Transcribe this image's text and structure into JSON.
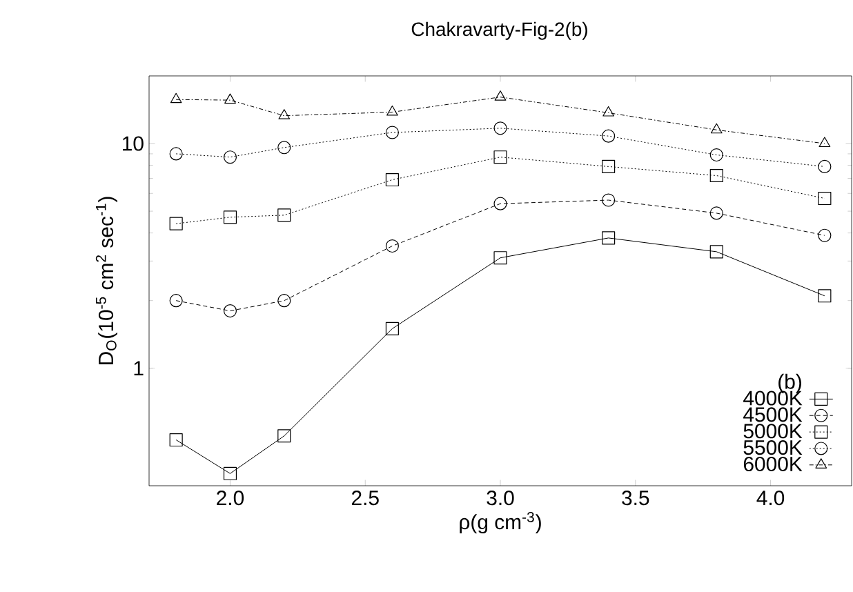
{
  "chart_data": {
    "type": "line",
    "title": "Chakravarty-Fig-2(b)",
    "xlabel": "ρ(g cm$^{-3}$)",
    "ylabel": "D$_{O}$(10$^{-5}$ cm$^{2}$ sec$^{-1}$)",
    "x": [
      1.8,
      2.0,
      2.2,
      2.6,
      3.0,
      3.4,
      3.8,
      4.2
    ],
    "series": [
      {
        "name": "4000K",
        "color": "#000000",
        "marker": "square",
        "line_style": "solid",
        "values": [
          0.48,
          0.34,
          0.5,
          1.5,
          3.1,
          3.8,
          3.3,
          2.1
        ]
      },
      {
        "name": "4500K",
        "color": "#000000",
        "marker": "circle",
        "line_style": "dashed",
        "values": [
          2.0,
          1.8,
          2.0,
          3.5,
          5.4,
          5.6,
          4.9,
          3.9
        ]
      },
      {
        "name": "5000K",
        "color": "#000000",
        "marker": "square",
        "line_style": "dotted",
        "values": [
          4.4,
          4.7,
          4.8,
          6.9,
          8.7,
          7.9,
          7.2,
          5.7
        ]
      },
      {
        "name": "5500K",
        "color": "#000000",
        "marker": "circle",
        "line_style": "dotted",
        "values": [
          9.0,
          8.7,
          9.6,
          11.2,
          11.7,
          10.8,
          8.9,
          7.9
        ]
      },
      {
        "name": "6000K",
        "color": "#000000",
        "marker": "triangle",
        "line_style": "dashdot",
        "values": [
          15.7,
          15.6,
          13.3,
          13.8,
          16.1,
          13.7,
          11.5,
          10.0
        ]
      }
    ],
    "legend_title": "(b)",
    "legend": "bottom right",
    "log": "y",
    "xlim": [
      1.7,
      4.3
    ],
    "xticks": [
      {
        "value": 2.0,
        "label": "2.0"
      },
      {
        "value": 2.5,
        "label": "2.5"
      },
      {
        "value": 3.0,
        "label": "3.0"
      },
      {
        "value": 3.5,
        "label": "3.5"
      },
      {
        "value": 4.0,
        "label": "4.0"
      }
    ],
    "ylim": [
      0.3,
      20
    ],
    "yticks": [
      1,
      10
    ],
    "grid": false
  }
}
